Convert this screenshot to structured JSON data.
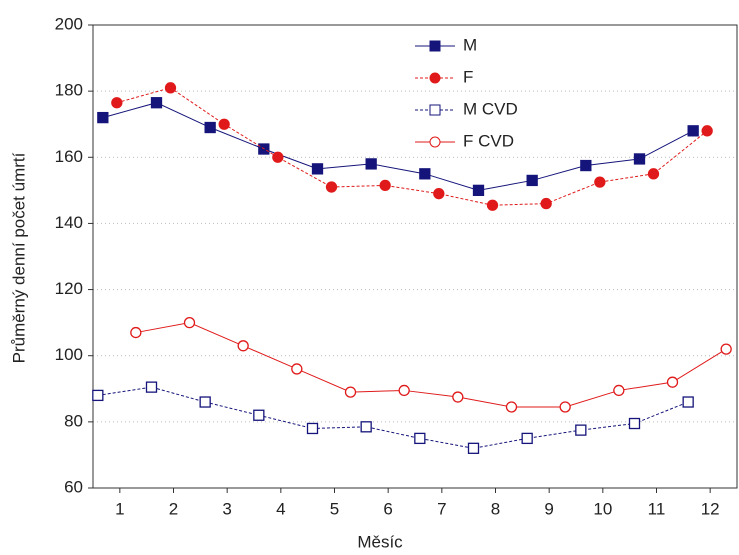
{
  "chart_data": {
    "type": "line",
    "xlabel": "Měsíc",
    "ylabel": "Průměrný denní počet úmrtí",
    "categories": [
      "1",
      "2",
      "3",
      "4",
      "5",
      "6",
      "7",
      "8",
      "9",
      "10",
      "11",
      "12"
    ],
    "ylim": [
      60,
      200
    ],
    "yticks": [
      60,
      80,
      100,
      120,
      140,
      160,
      180,
      200
    ],
    "grid": true,
    "legend": "upper center",
    "series": [
      {
        "name": "M",
        "color": "#14147a",
        "marker": "square",
        "filled": true,
        "dashed": false,
        "values": [
          172,
          176.5,
          169,
          162.5,
          156.5,
          158,
          155,
          150,
          153,
          157.5,
          159.5,
          168
        ]
      },
      {
        "name": "F",
        "color": "#e01a1a",
        "marker": "circle",
        "filled": true,
        "dashed": true,
        "values": [
          176.5,
          181,
          170,
          160,
          151,
          151.5,
          149,
          145.5,
          146,
          152.5,
          155,
          168
        ]
      },
      {
        "name": "M CVD",
        "color": "#14147a",
        "marker": "square",
        "filled": false,
        "dashed": true,
        "values": [
          88,
          90.5,
          86,
          82,
          78,
          78.5,
          75,
          72,
          75,
          77.5,
          79.5,
          86
        ]
      },
      {
        "name": "F CVD",
        "color": "#e01a1a",
        "marker": "circle",
        "filled": false,
        "dashed": false,
        "values": [
          107,
          110,
          103,
          96,
          89,
          89.5,
          87.5,
          84.5,
          84.5,
          89.5,
          92,
          102
        ]
      }
    ]
  }
}
